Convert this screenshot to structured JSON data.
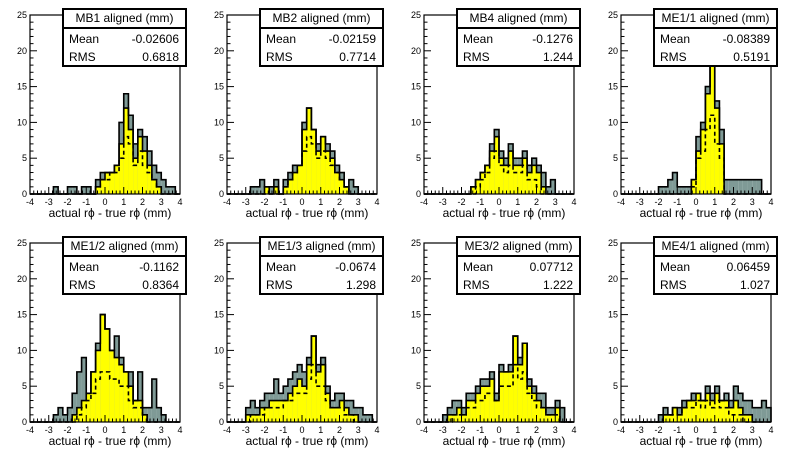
{
  "chart_data": [
    {
      "type": "bar",
      "title": "MB1 aligned (mm)",
      "stats": {
        "mean_label": "Mean",
        "mean": "-0.02606",
        "rms_label": "RMS",
        "rms": "0.6818"
      },
      "xlabel": "actual rϕ - true rϕ (mm)",
      "xlim": [
        -4,
        4
      ],
      "ylim": [
        0,
        25
      ],
      "bin_width": 0.25,
      "xticks": [
        "-4",
        "-3",
        "-2",
        "-1",
        "0",
        "1",
        "2",
        "3",
        "4"
      ],
      "yticks": [
        "0",
        "5",
        "10",
        "15",
        "20",
        "25"
      ],
      "series": [
        {
          "role": "total",
          "values": [
            0,
            0,
            0,
            0,
            0,
            1,
            0,
            0,
            1,
            1,
            0,
            1,
            1,
            0,
            2,
            3,
            3,
            3,
            4,
            10,
            14,
            11,
            7,
            9,
            8,
            6,
            4,
            3,
            2,
            1,
            1,
            0
          ]
        },
        {
          "role": "selected",
          "values": [
            0,
            0,
            0,
            0,
            0,
            0,
            0,
            0,
            0,
            0,
            0,
            0,
            0,
            0,
            1,
            2,
            3,
            3,
            4,
            7,
            12,
            9,
            5,
            8,
            6,
            4,
            2,
            1,
            0,
            0,
            0,
            0
          ]
        },
        {
          "role": "dashed",
          "values": [
            0,
            0,
            0,
            0,
            0,
            0,
            0,
            0,
            0,
            0,
            0,
            0,
            0,
            0,
            1,
            2,
            2,
            3,
            3,
            5,
            8,
            7,
            4,
            6,
            4,
            3,
            2,
            1,
            0,
            0,
            0,
            0
          ]
        }
      ]
    },
    {
      "type": "bar",
      "title": "MB2 aligned (mm)",
      "stats": {
        "mean_label": "Mean",
        "mean": "-0.02159",
        "rms_label": "RMS",
        "rms": "0.7714"
      },
      "xlabel": "actual rϕ - true rϕ (mm)",
      "xlim": [
        -4,
        4
      ],
      "ylim": [
        0,
        25
      ],
      "bin_width": 0.25,
      "xticks": [
        "-4",
        "-3",
        "-2",
        "-1",
        "0",
        "1",
        "2",
        "3",
        "4"
      ],
      "yticks": [
        "0",
        "5",
        "10",
        "15",
        "20",
        "25"
      ],
      "series": [
        {
          "role": "total",
          "values": [
            0,
            0,
            0,
            0,
            0,
            1,
            1,
            2,
            1,
            1,
            2,
            0,
            2,
            3,
            4,
            4,
            10,
            12,
            9,
            7,
            8,
            7,
            6,
            4,
            3,
            1,
            2,
            1,
            0,
            0,
            0,
            0
          ]
        },
        {
          "role": "selected",
          "values": [
            0,
            0,
            0,
            0,
            0,
            0,
            0,
            0,
            1,
            0,
            1,
            0,
            1,
            2,
            3,
            4,
            9,
            12,
            9,
            6,
            8,
            6,
            5,
            3,
            2,
            1,
            0,
            0,
            0,
            0,
            0,
            0
          ]
        },
        {
          "role": "dashed",
          "values": [
            0,
            0,
            0,
            0,
            0,
            0,
            0,
            0,
            0,
            0,
            0,
            0,
            1,
            2,
            3,
            4,
            6,
            8,
            7,
            5,
            6,
            5,
            4,
            3,
            2,
            1,
            0,
            0,
            0,
            0,
            0,
            0
          ]
        }
      ]
    },
    {
      "type": "bar",
      "title": "MB4 aligned (mm)",
      "stats": {
        "mean_label": "Mean",
        "mean": "-0.1276",
        "rms_label": "RMS",
        "rms": "1.244"
      },
      "xlabel": "actual rϕ - true rϕ (mm)",
      "xlim": [
        -4,
        4
      ],
      "ylim": [
        0,
        25
      ],
      "bin_width": 0.25,
      "xticks": [
        "-4",
        "-3",
        "-2",
        "-1",
        "0",
        "1",
        "2",
        "3",
        "4"
      ],
      "yticks": [
        "0",
        "5",
        "10",
        "15",
        "20",
        "25"
      ],
      "series": [
        {
          "role": "total",
          "values": [
            0,
            0,
            0,
            0,
            0,
            0,
            0,
            0,
            0,
            0,
            1,
            2,
            3,
            4,
            7,
            9,
            6,
            5,
            7,
            5,
            5,
            6,
            4,
            5,
            4,
            3,
            1,
            2,
            0,
            0,
            0,
            0
          ]
        },
        {
          "role": "selected",
          "values": [
            0,
            0,
            0,
            0,
            0,
            0,
            0,
            0,
            0,
            0,
            1,
            2,
            3,
            4,
            6,
            8,
            5,
            4,
            6,
            4,
            4,
            5,
            3,
            4,
            3,
            1,
            0,
            0,
            0,
            0,
            0,
            0
          ]
        },
        {
          "role": "dashed",
          "values": [
            0,
            0,
            0,
            0,
            0,
            0,
            0,
            0,
            0,
            0,
            0,
            1,
            2,
            3,
            5,
            6,
            4,
            3,
            4,
            3,
            3,
            4,
            2,
            2,
            1,
            0,
            0,
            0,
            0,
            0,
            0,
            0
          ]
        }
      ]
    },
    {
      "type": "bar",
      "title": "ME1/1 aligned (mm)",
      "stats": {
        "mean_label": "Mean",
        "mean": "-0.08389",
        "rms_label": "RMS",
        "rms": "0.5191"
      },
      "xlabel": "actual rϕ - true rϕ (mm)",
      "xlim": [
        -4,
        4
      ],
      "ylim": [
        0,
        25
      ],
      "bin_width": 0.25,
      "xticks": [
        "-4",
        "-3",
        "-2",
        "-1",
        "0",
        "1",
        "2",
        "3",
        "4"
      ],
      "yticks": [
        "0",
        "5",
        "10",
        "15",
        "20",
        "25"
      ],
      "series": [
        {
          "role": "total",
          "values": [
            0,
            0,
            0,
            0,
            0,
            0,
            0,
            0,
            1,
            1,
            2,
            3,
            1,
            1,
            1,
            2,
            8,
            10,
            15,
            19,
            13,
            9,
            2,
            2,
            2,
            2,
            2,
            2,
            2,
            2,
            0,
            0
          ]
        },
        {
          "role": "selected",
          "values": [
            0,
            0,
            0,
            0,
            0,
            0,
            0,
            0,
            0,
            0,
            0,
            0,
            0,
            0,
            0,
            2,
            6,
            9,
            14,
            18,
            12,
            7,
            0,
            0,
            0,
            0,
            0,
            0,
            0,
            0,
            0,
            0
          ]
        },
        {
          "role": "dashed",
          "values": [
            0,
            0,
            0,
            0,
            0,
            0,
            0,
            0,
            0,
            0,
            0,
            0,
            0,
            0,
            0,
            1,
            5,
            6,
            9,
            11,
            7,
            5,
            0,
            0,
            0,
            0,
            0,
            0,
            0,
            0,
            0,
            0
          ]
        }
      ]
    },
    {
      "type": "bar",
      "title": "ME1/2 aligned (mm)",
      "stats": {
        "mean_label": "Mean",
        "mean": "-0.1162",
        "rms_label": "RMS",
        "rms": "0.8364"
      },
      "xlabel": "actual rϕ - true rϕ (mm)",
      "xlim": [
        -4,
        4
      ],
      "ylim": [
        0,
        25
      ],
      "bin_width": 0.25,
      "xticks": [
        "-4",
        "-3",
        "-2",
        "-1",
        "0",
        "1",
        "2",
        "3",
        "4"
      ],
      "yticks": [
        "0",
        "5",
        "10",
        "15",
        "20",
        "25"
      ],
      "series": [
        {
          "role": "total",
          "values": [
            0,
            0,
            0,
            0,
            0,
            1,
            2,
            1,
            2,
            4,
            7,
            9,
            4,
            7,
            11,
            15,
            13,
            10,
            12,
            9,
            7,
            7,
            3,
            7,
            2,
            2,
            6,
            2,
            1,
            0,
            0,
            0
          ]
        },
        {
          "role": "selected",
          "values": [
            0,
            0,
            0,
            0,
            0,
            0,
            0,
            0,
            0,
            1,
            2,
            3,
            4,
            7,
            10,
            15,
            13,
            10,
            9,
            8,
            7,
            5,
            3,
            3,
            1,
            0,
            0,
            0,
            0,
            0,
            0,
            0
          ]
        },
        {
          "role": "dashed",
          "values": [
            0,
            0,
            0,
            0,
            0,
            0,
            0,
            0,
            0,
            0,
            1,
            2,
            3,
            4,
            6,
            7,
            7,
            6,
            6,
            5,
            5,
            3,
            2,
            2,
            1,
            0,
            0,
            0,
            0,
            0,
            0,
            0
          ]
        }
      ]
    },
    {
      "type": "bar",
      "title": "ME1/3 aligned (mm)",
      "stats": {
        "mean_label": "Mean",
        "mean": "-0.0674",
        "rms_label": "RMS",
        "rms": "1.298"
      },
      "xlabel": "actual rϕ - true rϕ (mm)",
      "xlim": [
        -4,
        4
      ],
      "ylim": [
        0,
        25
      ],
      "bin_width": 0.25,
      "xticks": [
        "-4",
        "-3",
        "-2",
        "-1",
        "0",
        "1",
        "2",
        "3",
        "4"
      ],
      "yticks": [
        "0",
        "5",
        "10",
        "15",
        "20",
        "25"
      ],
      "series": [
        {
          "role": "total",
          "values": [
            0,
            0,
            0,
            0,
            2,
            3,
            2,
            3,
            4,
            4,
            6,
            4,
            5,
            6,
            7,
            8,
            7,
            9,
            12,
            8,
            9,
            5,
            3,
            4,
            4,
            3,
            3,
            2,
            2,
            1,
            1,
            0
          ]
        },
        {
          "role": "selected",
          "values": [
            0,
            0,
            0,
            0,
            1,
            1,
            1,
            2,
            2,
            3,
            3,
            3,
            3,
            4,
            5,
            6,
            5,
            8,
            12,
            7,
            8,
            4,
            2,
            2,
            3,
            2,
            1,
            1,
            0,
            0,
            0,
            0
          ]
        },
        {
          "role": "dashed",
          "values": [
            0,
            0,
            0,
            0,
            0,
            1,
            1,
            1,
            2,
            2,
            2,
            2,
            3,
            3,
            4,
            4,
            4,
            6,
            8,
            5,
            5,
            3,
            2,
            2,
            2,
            1,
            1,
            0,
            0,
            0,
            0,
            0
          ]
        }
      ]
    },
    {
      "type": "bar",
      "title": "ME3/2 aligned (mm)",
      "stats": {
        "mean_label": "Mean",
        "mean": "0.07712",
        "rms_label": "RMS",
        "rms": "1.222"
      },
      "xlabel": "actual rϕ - true rϕ (mm)",
      "xlim": [
        -4,
        4
      ],
      "ylim": [
        0,
        25
      ],
      "bin_width": 0.25,
      "xticks": [
        "-4",
        "-3",
        "-2",
        "-1",
        "0",
        "1",
        "2",
        "3",
        "4"
      ],
      "yticks": [
        "0",
        "5",
        "10",
        "15",
        "20",
        "25"
      ],
      "series": [
        {
          "role": "total",
          "values": [
            0,
            0,
            0,
            0,
            1,
            2,
            3,
            3,
            2,
            4,
            4,
            5,
            6,
            6,
            7,
            4,
            8,
            7,
            8,
            12,
            9,
            11,
            6,
            5,
            4,
            4,
            2,
            2,
            3,
            2,
            0,
            0
          ]
        },
        {
          "role": "selected",
          "values": [
            0,
            0,
            0,
            0,
            0,
            1,
            1,
            2,
            1,
            3,
            3,
            4,
            5,
            5,
            6,
            3,
            7,
            7,
            7,
            12,
            8,
            11,
            5,
            4,
            3,
            2,
            1,
            1,
            2,
            0,
            0,
            0
          ]
        },
        {
          "role": "dashed",
          "values": [
            0,
            0,
            0,
            0,
            0,
            0,
            1,
            1,
            1,
            2,
            2,
            3,
            3,
            4,
            4,
            3,
            5,
            5,
            5,
            8,
            6,
            7,
            4,
            3,
            2,
            2,
            1,
            1,
            1,
            0,
            0,
            0
          ]
        }
      ]
    },
    {
      "type": "bar",
      "title": "ME4/1 aligned (mm)",
      "stats": {
        "mean_label": "Mean",
        "mean": "0.06459",
        "rms_label": "RMS",
        "rms": "1.027"
      },
      "xlabel": "actual rϕ - true rϕ (mm)",
      "xlim": [
        -4,
        4
      ],
      "ylim": [
        0,
        25
      ],
      "bin_width": 0.25,
      "xticks": [
        "-4",
        "-3",
        "-2",
        "-1",
        "0",
        "1",
        "2",
        "3",
        "4"
      ],
      "yticks": [
        "0",
        "5",
        "10",
        "15",
        "20",
        "25"
      ],
      "series": [
        {
          "role": "total",
          "values": [
            0,
            0,
            0,
            0,
            0,
            0,
            0,
            0,
            1,
            2,
            1,
            2,
            2,
            3,
            3,
            4,
            4,
            3,
            5,
            4,
            5,
            3,
            4,
            3,
            5,
            4,
            3,
            3,
            2,
            2,
            3,
            2
          ]
        },
        {
          "role": "selected",
          "values": [
            0,
            0,
            0,
            0,
            0,
            0,
            0,
            0,
            0,
            1,
            1,
            2,
            1,
            2,
            3,
            3,
            4,
            3,
            4,
            3,
            4,
            3,
            3,
            2,
            3,
            2,
            1,
            1,
            0,
            0,
            0,
            0
          ]
        },
        {
          "role": "dashed",
          "values": [
            0,
            0,
            0,
            0,
            0,
            0,
            0,
            0,
            0,
            1,
            1,
            1,
            1,
            2,
            2,
            2,
            3,
            2,
            3,
            2,
            3,
            2,
            2,
            1,
            1,
            1,
            0,
            0,
            0,
            0,
            0,
            0
          ]
        }
      ]
    }
  ],
  "colors": {
    "total": "#7f9a96",
    "selected": "#ffff00",
    "frame": "#000000"
  }
}
